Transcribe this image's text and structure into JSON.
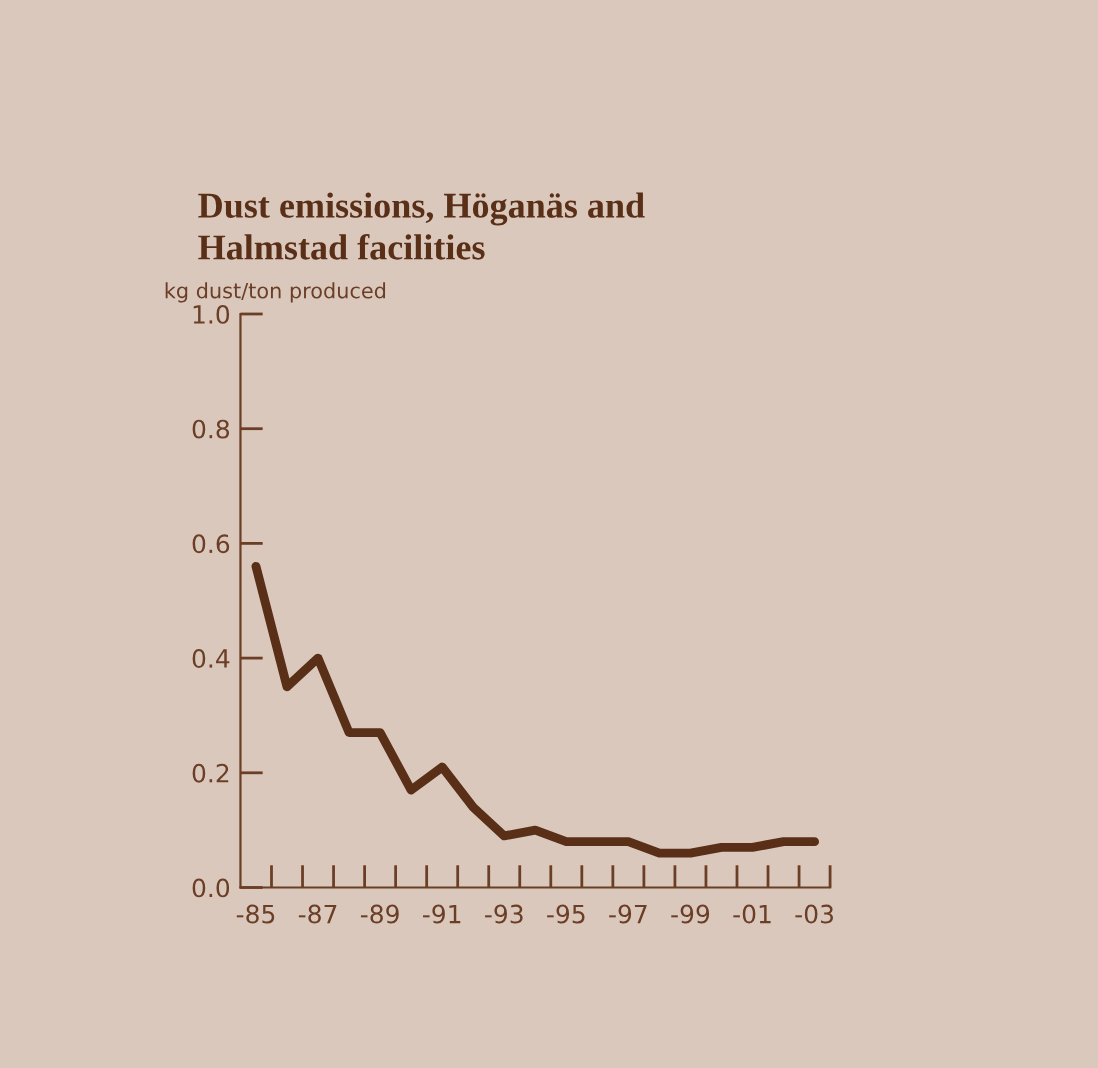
{
  "chart_data": {
    "type": "line",
    "title": "Dust emissions, Höganäs and\nHalmstad facilities",
    "ylabel": "kg dust/ton produced",
    "categories": [
      "-85",
      null,
      "-87",
      null,
      "-89",
      null,
      "-91",
      null,
      "-93",
      null,
      "-95",
      null,
      "-97",
      null,
      "-99",
      null,
      "-01",
      null,
      "-03"
    ],
    "series": [
      {
        "color": "#5a2f17",
        "values": [
          0.56,
          0.35,
          0.4,
          0.27,
          0.27,
          0.17,
          0.21,
          0.14,
          0.09,
          0.1,
          0.08,
          0.08,
          0.08,
          0.06,
          0.06,
          0.07,
          0.07,
          0.08,
          0.08
        ]
      }
    ],
    "ylim": [
      0,
      1.0
    ],
    "yticks": [
      {
        "value": 0,
        "label": "0.0"
      },
      {
        "value": 0.2,
        "label": "0.2"
      },
      {
        "value": 0.4,
        "label": "0.4"
      },
      {
        "value": 0.6,
        "label": "0.6"
      },
      {
        "value": 0.8,
        "label": "0.8"
      },
      {
        "value": 1.0,
        "label": "1.0"
      }
    ],
    "grid": false,
    "legend": false,
    "marker": "none",
    "line_style": "solid"
  }
}
